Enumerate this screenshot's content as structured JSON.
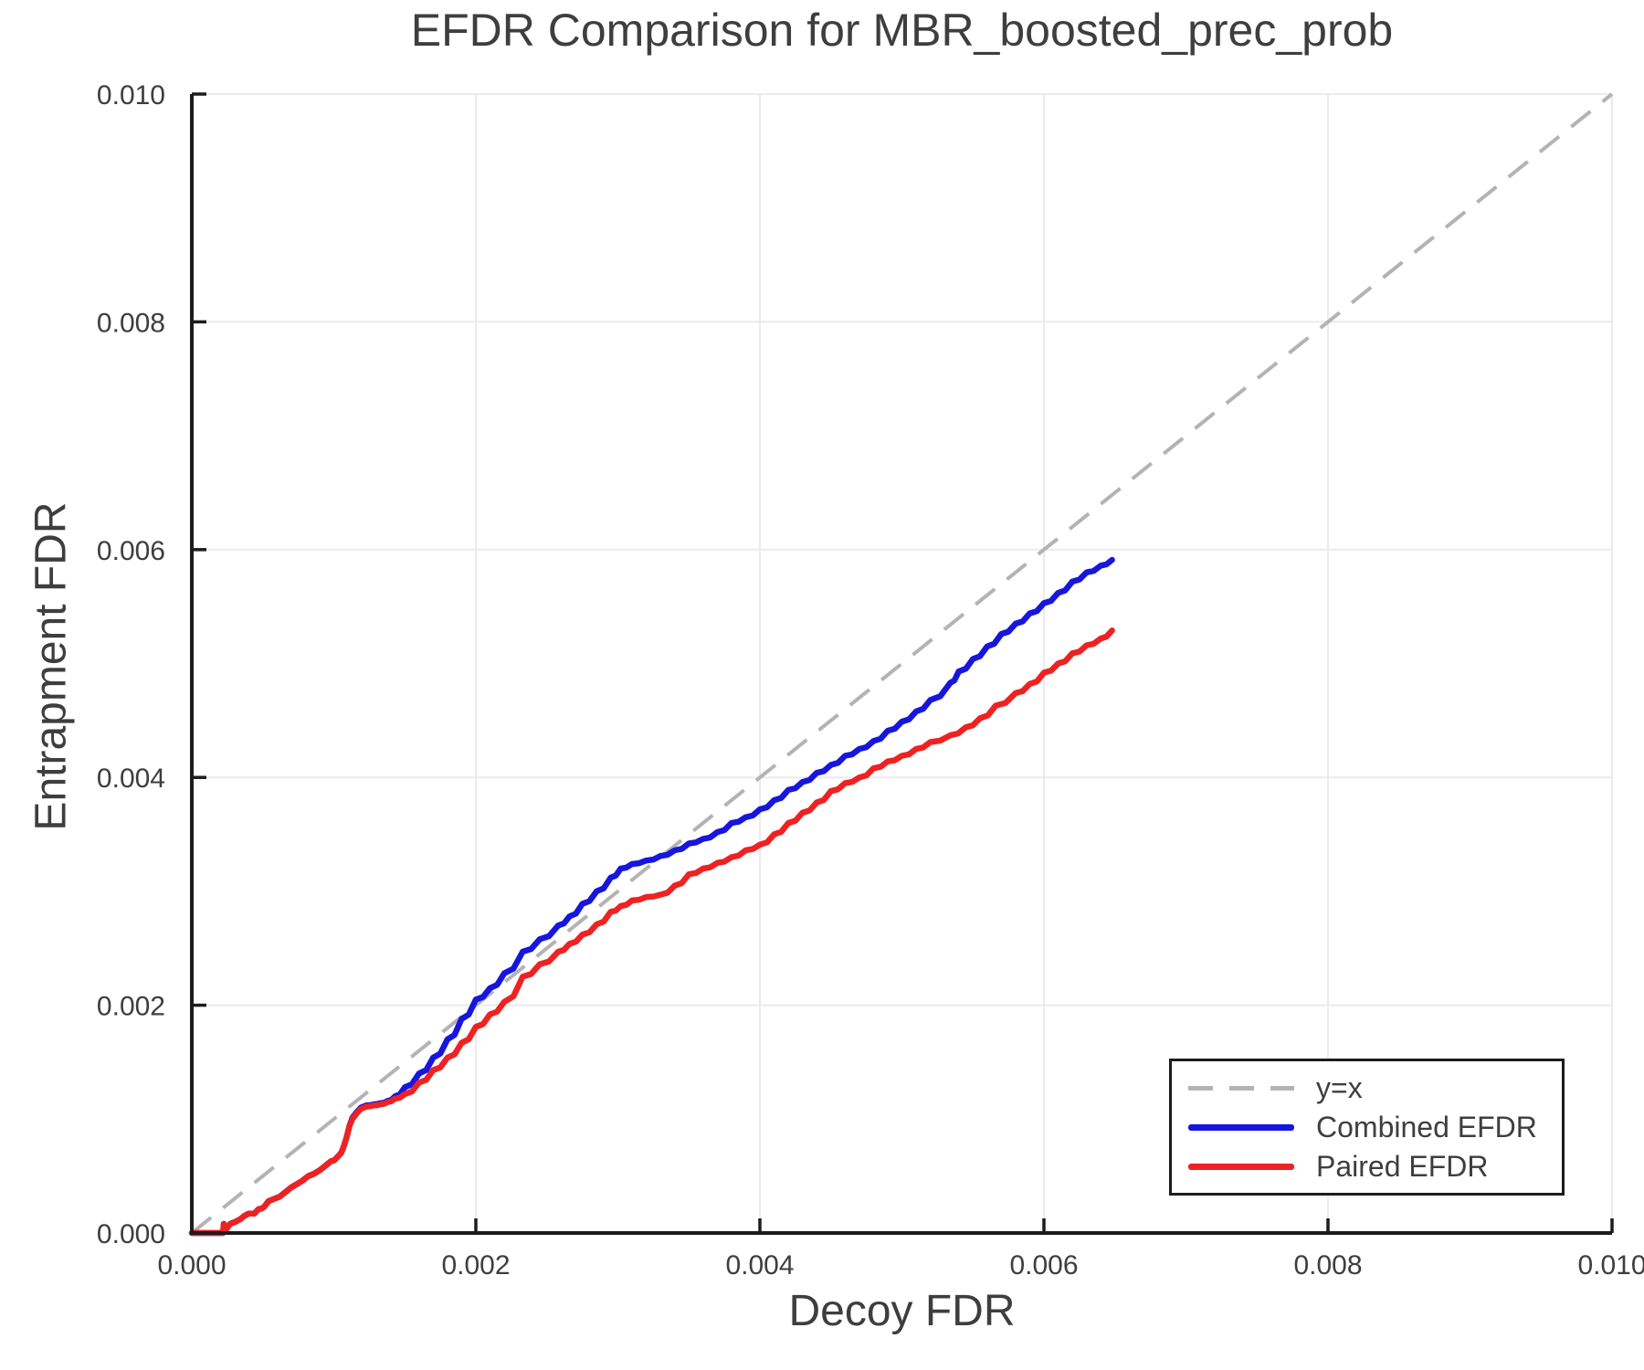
{
  "colors": {
    "text": "#3e3e3e",
    "spine": "#1c1c1c",
    "grid": "#ebebeb",
    "background": "#ffffff"
  },
  "chart_data": {
    "type": "line",
    "title": "EFDR Comparison for MBR_boosted_prec_prob",
    "xlabel": "Decoy FDR",
    "ylabel": "Entrapment FDR",
    "xlim": [
      0.0,
      0.01
    ],
    "ylim": [
      0.0,
      0.01
    ],
    "grid": true,
    "legend_position": "lower right",
    "xticks": {
      "values": [
        0.0,
        0.002,
        0.004,
        0.006,
        0.008,
        0.01
      ],
      "labels": [
        "0.000",
        "0.002",
        "0.004",
        "0.006",
        "0.008",
        "0.010"
      ]
    },
    "yticks": {
      "values": [
        0.0,
        0.002,
        0.004,
        0.006,
        0.008,
        0.01
      ],
      "labels": [
        "0.000",
        "0.002",
        "0.004",
        "0.006",
        "0.008",
        "0.010"
      ]
    },
    "reference_line": {
      "label": "y=x",
      "style": "dashed",
      "color": "#b3b3b3",
      "from": [
        0.0,
        0.0
      ],
      "to": [
        0.01,
        0.01
      ]
    },
    "series": [
      {
        "name": "Combined EFDR",
        "color": "#1616dd",
        "points": [
          [
            0.0,
            0.0
          ],
          [
            0.00022,
            0.0
          ],
          [
            0.000225,
            8e-05
          ],
          [
            0.00024,
            3e-05
          ],
          [
            0.00027,
            8e-05
          ],
          [
            0.00031,
            0.0001
          ],
          [
            0.00034,
            0.00012
          ],
          [
            0.00037,
            0.00015
          ],
          [
            0.0004,
            0.00017
          ],
          [
            0.00044,
            0.00017
          ],
          [
            0.00047,
            0.00021
          ],
          [
            0.00051,
            0.00023
          ],
          [
            0.00054,
            0.00028
          ],
          [
            0.00058,
            0.0003
          ],
          [
            0.00062,
            0.00032
          ],
          [
            0.00066,
            0.00036
          ],
          [
            0.0007,
            0.0004
          ],
          [
            0.00074,
            0.00043
          ],
          [
            0.00078,
            0.00046
          ],
          [
            0.00082,
            0.0005
          ],
          [
            0.00086,
            0.00052
          ],
          [
            0.0009,
            0.00055
          ],
          [
            0.00094,
            0.00059
          ],
          [
            0.00098,
            0.00063
          ],
          [
            0.00102,
            0.00066
          ],
          [
            0.00105,
            0.0007
          ],
          [
            0.00107,
            0.00076
          ],
          [
            0.00109,
            0.00084
          ],
          [
            0.00111,
            0.00094
          ],
          [
            0.00113,
            0.00101
          ],
          [
            0.00116,
            0.00106
          ],
          [
            0.00119,
            0.0011
          ],
          [
            0.00123,
            0.00112
          ],
          [
            0.00128,
            0.00113
          ],
          [
            0.00133,
            0.00114
          ],
          [
            0.00138,
            0.00116
          ],
          [
            0.00143,
            0.0012
          ],
          [
            0.0015,
            0.00128
          ],
          [
            0.0016,
            0.0014
          ],
          [
            0.0017,
            0.00154
          ],
          [
            0.0018,
            0.0017
          ],
          [
            0.0019,
            0.00188
          ],
          [
            0.002,
            0.00205
          ],
          [
            0.0021,
            0.00215
          ],
          [
            0.0022,
            0.00228
          ],
          [
            0.00233,
            0.00247
          ],
          [
            0.00245,
            0.00258
          ],
          [
            0.00258,
            0.0027
          ],
          [
            0.00266,
            0.00278
          ],
          [
            0.00275,
            0.00289
          ],
          [
            0.00285,
            0.003
          ],
          [
            0.00295,
            0.00312
          ],
          [
            0.00302,
            0.0032
          ],
          [
            0.0031,
            0.00324
          ],
          [
            0.0032,
            0.00327
          ],
          [
            0.0033,
            0.00331
          ],
          [
            0.0034,
            0.00336
          ],
          [
            0.0035,
            0.00342
          ],
          [
            0.0036,
            0.00346
          ],
          [
            0.0037,
            0.00352
          ],
          [
            0.0038,
            0.0036
          ],
          [
            0.0039,
            0.00365
          ],
          [
            0.004,
            0.00372
          ],
          [
            0.0041,
            0.0038
          ],
          [
            0.0042,
            0.00389
          ],
          [
            0.0043,
            0.00396
          ],
          [
            0.0044,
            0.00404
          ],
          [
            0.0045,
            0.00411
          ],
          [
            0.0046,
            0.00419
          ],
          [
            0.0047,
            0.00425
          ],
          [
            0.0048,
            0.00432
          ],
          [
            0.0049,
            0.00441
          ],
          [
            0.005,
            0.00449
          ],
          [
            0.0051,
            0.00458
          ],
          [
            0.0052,
            0.00468
          ],
          [
            0.00534,
            0.00483
          ],
          [
            0.0054,
            0.00493
          ],
          [
            0.0055,
            0.00504
          ],
          [
            0.0056,
            0.00515
          ],
          [
            0.0057,
            0.00526
          ],
          [
            0.0058,
            0.00535
          ],
          [
            0.0059,
            0.00544
          ],
          [
            0.006,
            0.00553
          ],
          [
            0.0061,
            0.00562
          ],
          [
            0.0062,
            0.00572
          ],
          [
            0.0063,
            0.0058
          ],
          [
            0.0064,
            0.00586
          ],
          [
            0.00648,
            0.00591
          ]
        ]
      },
      {
        "name": "Paired EFDR",
        "color": "#ee2222",
        "points": [
          [
            0.0,
            0.0
          ],
          [
            0.00022,
            0.0
          ],
          [
            0.000225,
            8e-05
          ],
          [
            0.00024,
            3e-05
          ],
          [
            0.00027,
            8e-05
          ],
          [
            0.00031,
            0.0001
          ],
          [
            0.00034,
            0.00012
          ],
          [
            0.00037,
            0.00015
          ],
          [
            0.0004,
            0.00017
          ],
          [
            0.00044,
            0.00017
          ],
          [
            0.00047,
            0.00021
          ],
          [
            0.00051,
            0.00023
          ],
          [
            0.00054,
            0.00028
          ],
          [
            0.00058,
            0.0003
          ],
          [
            0.00062,
            0.00032
          ],
          [
            0.00066,
            0.00036
          ],
          [
            0.0007,
            0.0004
          ],
          [
            0.00074,
            0.00043
          ],
          [
            0.00078,
            0.00046
          ],
          [
            0.00082,
            0.0005
          ],
          [
            0.00086,
            0.00052
          ],
          [
            0.0009,
            0.00055
          ],
          [
            0.00094,
            0.00059
          ],
          [
            0.00098,
            0.00063
          ],
          [
            0.00102,
            0.00066
          ],
          [
            0.00105,
            0.0007
          ],
          [
            0.00107,
            0.00076
          ],
          [
            0.00109,
            0.00084
          ],
          [
            0.00111,
            0.00094
          ],
          [
            0.00113,
            0.001
          ],
          [
            0.00116,
            0.00105
          ],
          [
            0.00119,
            0.00109
          ],
          [
            0.00123,
            0.00111
          ],
          [
            0.00128,
            0.00112
          ],
          [
            0.00133,
            0.00113
          ],
          [
            0.00138,
            0.00115
          ],
          [
            0.00143,
            0.00118
          ],
          [
            0.0015,
            0.00122
          ],
          [
            0.0016,
            0.00132
          ],
          [
            0.0017,
            0.00143
          ],
          [
            0.0018,
            0.00154
          ],
          [
            0.0019,
            0.00167
          ],
          [
            0.002,
            0.00181
          ],
          [
            0.0021,
            0.00192
          ],
          [
            0.0022,
            0.00203
          ],
          [
            0.00233,
            0.00225
          ],
          [
            0.00245,
            0.00236
          ],
          [
            0.00258,
            0.00247
          ],
          [
            0.00266,
            0.00254
          ],
          [
            0.00275,
            0.00262
          ],
          [
            0.00285,
            0.00271
          ],
          [
            0.00295,
            0.00282
          ],
          [
            0.00302,
            0.00287
          ],
          [
            0.0031,
            0.00292
          ],
          [
            0.0032,
            0.00295
          ],
          [
            0.0033,
            0.00297
          ],
          [
            0.0034,
            0.00305
          ],
          [
            0.0035,
            0.00315
          ],
          [
            0.0036,
            0.0032
          ],
          [
            0.0037,
            0.00325
          ],
          [
            0.0038,
            0.0033
          ],
          [
            0.0039,
            0.00336
          ],
          [
            0.004,
            0.00341
          ],
          [
            0.0041,
            0.0035
          ],
          [
            0.0042,
            0.0036
          ],
          [
            0.0043,
            0.00369
          ],
          [
            0.0044,
            0.00378
          ],
          [
            0.0045,
            0.00388
          ],
          [
            0.0046,
            0.00395
          ],
          [
            0.0047,
            0.004
          ],
          [
            0.0048,
            0.00408
          ],
          [
            0.0049,
            0.00414
          ],
          [
            0.005,
            0.00419
          ],
          [
            0.0051,
            0.00425
          ],
          [
            0.0052,
            0.00431
          ],
          [
            0.00534,
            0.00437
          ],
          [
            0.00545,
            0.00444
          ],
          [
            0.00555,
            0.00452
          ],
          [
            0.00566,
            0.00463
          ],
          [
            0.0058,
            0.00474
          ],
          [
            0.0059,
            0.00482
          ],
          [
            0.006,
            0.00492
          ],
          [
            0.0061,
            0.005
          ],
          [
            0.0062,
            0.00509
          ],
          [
            0.0063,
            0.00516
          ],
          [
            0.0064,
            0.00522
          ],
          [
            0.00648,
            0.00529
          ]
        ]
      }
    ]
  }
}
